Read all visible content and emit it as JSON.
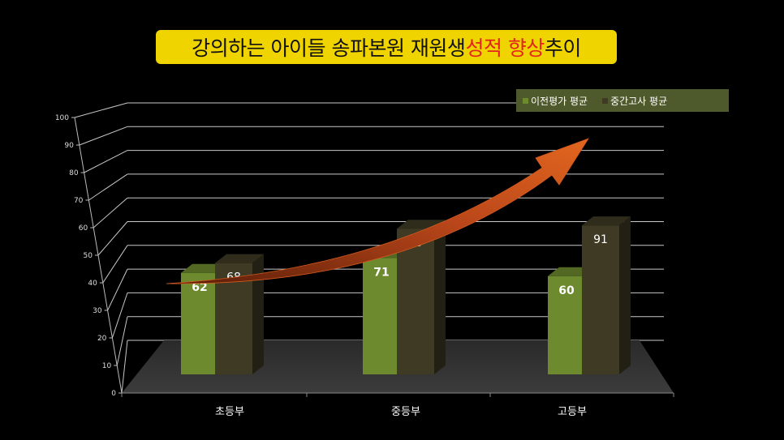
{
  "title": {
    "part1": "강의하는 아이들 송파본원 재원생 ",
    "highlight": "성적 향상",
    "part2": " 추이"
  },
  "colors": {
    "title_bg": "#f0d400",
    "highlight": "#e3241b",
    "series1": "#6e8a2e",
    "series2": "#3e3a24",
    "arrow": "#d2591d",
    "legend_bg": "#4f5a2c"
  },
  "chart_data": {
    "type": "bar",
    "style": "3d-clustered-column",
    "categories": [
      "초등부",
      "중등부",
      "고등부"
    ],
    "series": [
      {
        "name": "이전평가 평균",
        "values": [
          62,
          71,
          60
        ]
      },
      {
        "name": "중간고사 평균",
        "values": [
          68,
          89,
          91
        ]
      }
    ],
    "ylim": [
      0,
      100
    ],
    "yticks": [
      0,
      10,
      20,
      30,
      40,
      50,
      60,
      70,
      80,
      90,
      100
    ],
    "grid": true,
    "legend": "top-right",
    "annotation": "upward trend arrow"
  }
}
